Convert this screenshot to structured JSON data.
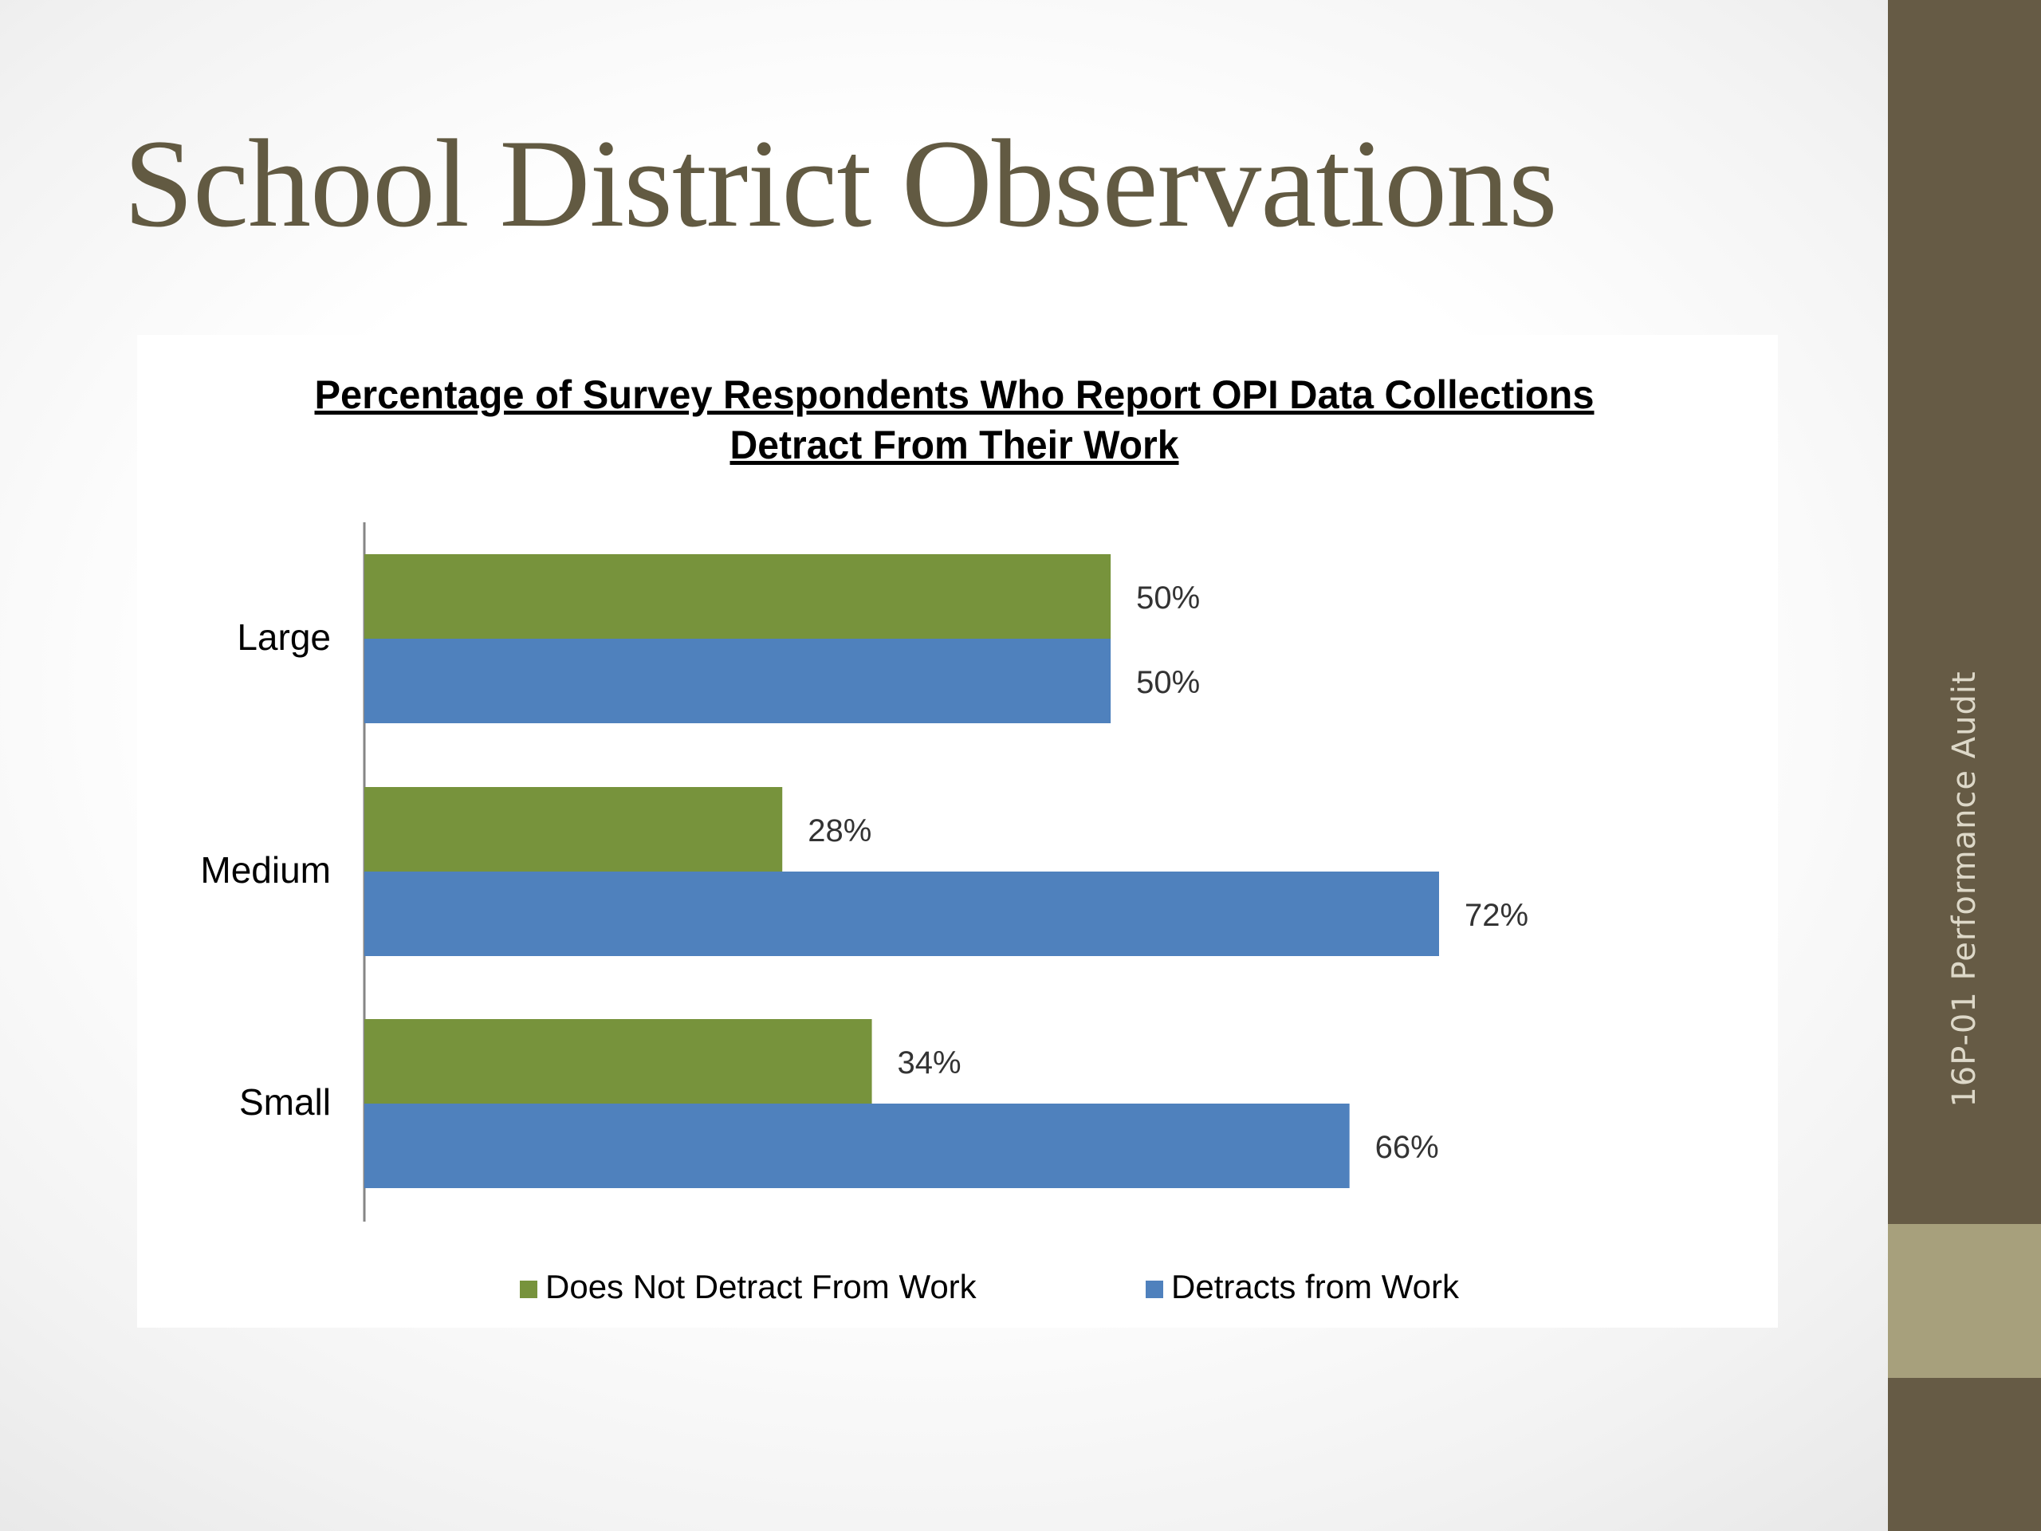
{
  "slide": {
    "title": "School District Observations",
    "sidebar_label": "16P-01  Performance Audit",
    "colors": {
      "title": "#625a42",
      "sidebar": "#665b45",
      "sidebar_accent": "#a7a07c"
    }
  },
  "chart_data": {
    "type": "bar",
    "orientation": "horizontal",
    "title": "Percentage of Survey Respondents Who Report OPI Data Collections Detract From Their Work",
    "title_lines": [
      "Percentage of Survey Respondents Who Report OPI Data Collections",
      "Detract From Their Work"
    ],
    "categories": [
      "Large",
      "Medium",
      "Small"
    ],
    "series": [
      {
        "name": "Does Not Detract From Work",
        "values": [
          50,
          28,
          34
        ],
        "labels": [
          "50%",
          "28%",
          "34%"
        ],
        "color": "#77933c"
      },
      {
        "name": "Detracts from Work",
        "values": [
          50,
          72,
          66
        ],
        "labels": [
          "50%",
          "72%",
          "66%"
        ],
        "color": "#4f81bd"
      }
    ],
    "xlim": [
      0,
      75
    ],
    "grid": false,
    "legend": "bottom",
    "xlabel": "",
    "ylabel": ""
  }
}
